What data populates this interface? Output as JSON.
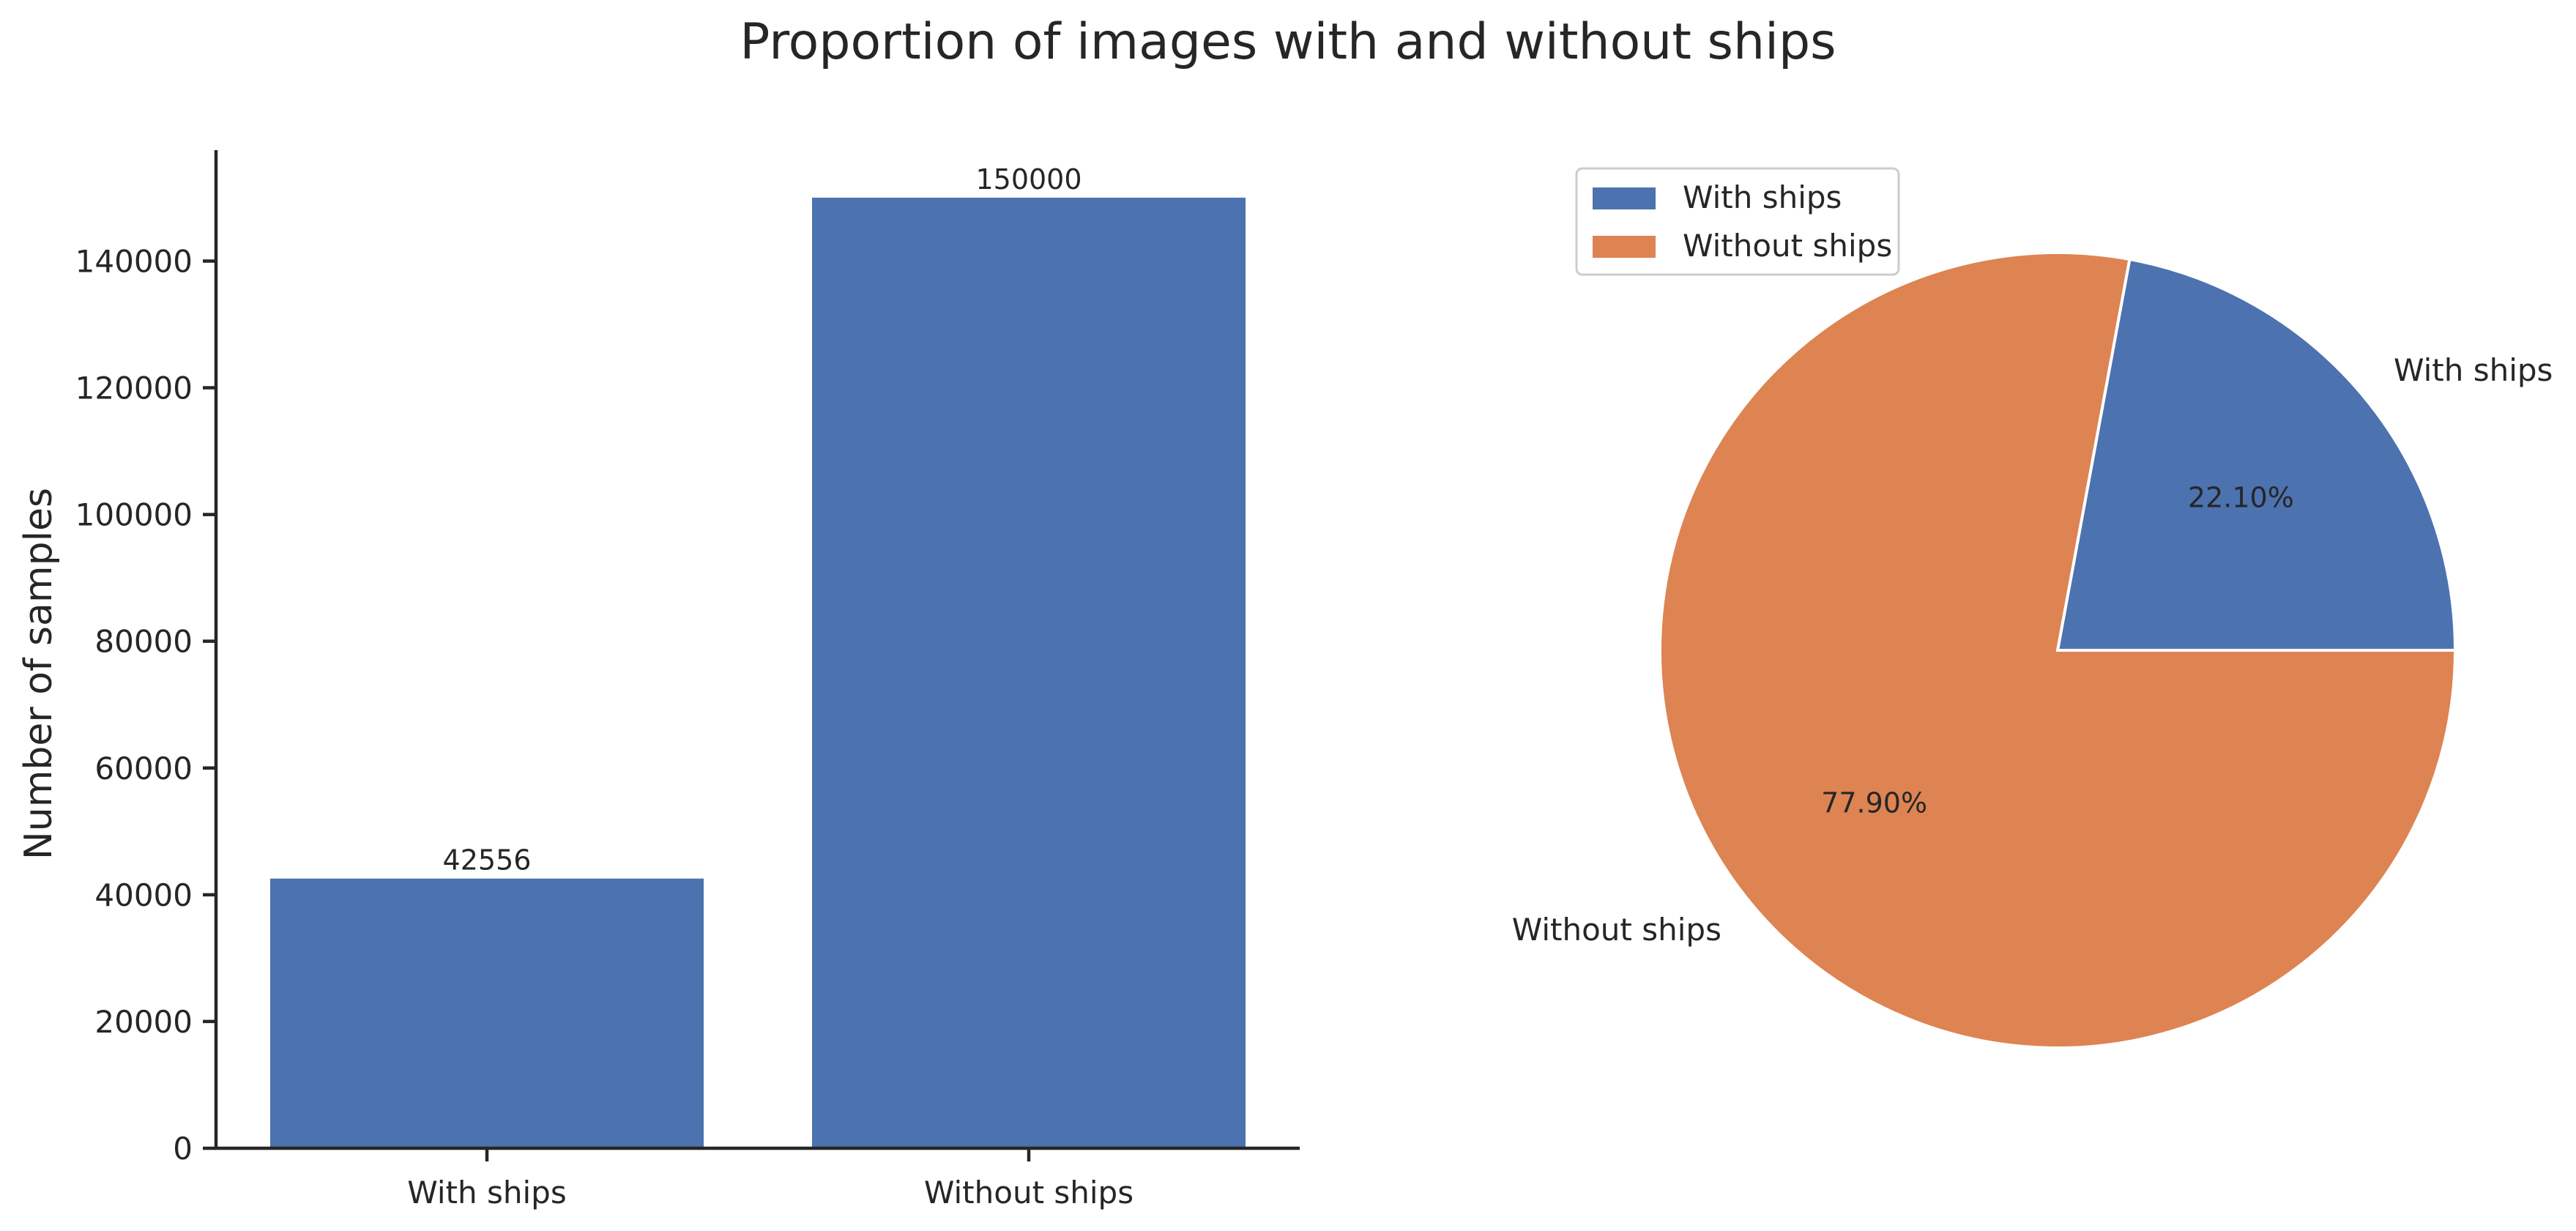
{
  "suptitle": "Proportion of images with and without ships",
  "chart_data": [
    {
      "type": "bar",
      "categories": [
        "With ships",
        "Without ships"
      ],
      "values": [
        42556,
        150000
      ],
      "value_labels": [
        "42556",
        "150000"
      ],
      "xlabel": "",
      "ylabel": "Number of samples",
      "ylim": [
        0,
        157500
      ],
      "yticks": [
        0,
        20000,
        40000,
        60000,
        80000,
        100000,
        120000,
        140000
      ],
      "ytick_labels": [
        "0",
        "20000",
        "40000",
        "60000",
        "80000",
        "100000",
        "120000",
        "140000"
      ],
      "grid": false,
      "color": "#4c72b0"
    },
    {
      "type": "pie",
      "labels": [
        "With ships",
        "Without ships"
      ],
      "values": [
        22.1,
        77.9
      ],
      "pct_labels": [
        "22.10%",
        "77.90%"
      ],
      "colors": [
        "#4c72b0",
        "#dd8452"
      ],
      "legend": {
        "entries": [
          "With ships",
          "Without ships"
        ],
        "placement": "upper-left"
      }
    }
  ]
}
